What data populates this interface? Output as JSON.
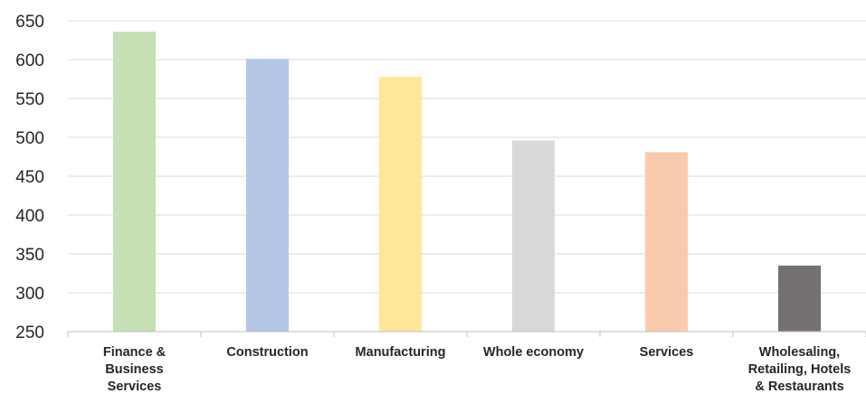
{
  "chart_data": {
    "type": "bar",
    "categories": [
      [
        "Finance &",
        "Business",
        "Services"
      ],
      [
        "Construction"
      ],
      [
        "Manufacturing"
      ],
      [
        "Whole economy"
      ],
      [
        "Services"
      ],
      [
        "Wholesaling,",
        "Retailing, Hotels",
        "& Restaurants"
      ]
    ],
    "values": [
      636,
      601,
      578,
      496,
      481,
      335
    ],
    "colors": [
      "#c5e0b4",
      "#b4c7e7",
      "#ffe699",
      "#d9d9d9",
      "#f8cbad",
      "#767171"
    ],
    "yticks": [
      250,
      300,
      350,
      400,
      450,
      500,
      550,
      600,
      650
    ],
    "ylim": [
      250,
      650
    ],
    "grid": true,
    "legend": "none",
    "title": "",
    "xlabel": "",
    "ylabel": ""
  }
}
